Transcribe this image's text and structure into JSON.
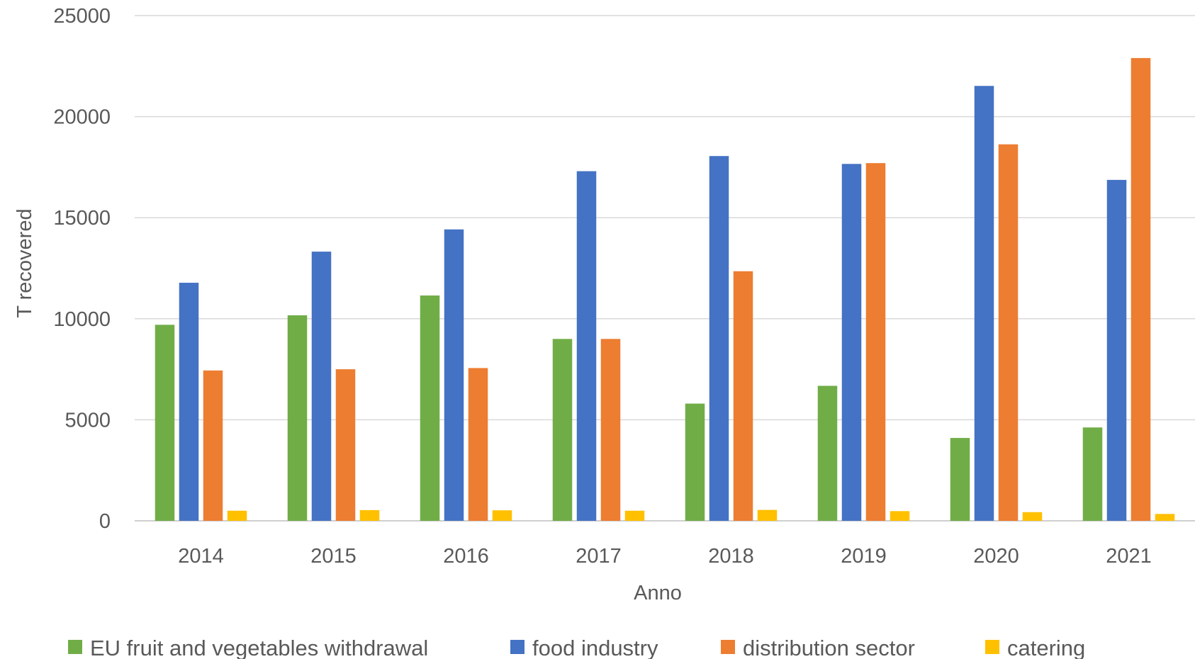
{
  "chart_data": {
    "type": "bar",
    "xlabel": "Anno",
    "ylabel": "T recovered",
    "ylim": [
      0,
      25000
    ],
    "yticks": [
      0,
      5000,
      10000,
      15000,
      20000,
      25000
    ],
    "grid": true,
    "legend_position": "bottom",
    "categories": [
      "2014",
      "2015",
      "2016",
      "2017",
      "2018",
      "2019",
      "2020",
      "2021"
    ],
    "series": [
      {
        "name": "EU fruit and vegetables withdrawal",
        "color": "#70AD47",
        "values": [
          9700,
          10170,
          11150,
          9000,
          5800,
          6680,
          4100,
          4620
        ]
      },
      {
        "name": "food industry",
        "color": "#4472C4",
        "values": [
          11780,
          13320,
          14420,
          17300,
          18050,
          17660,
          21520,
          16870
        ]
      },
      {
        "name": "distribution sector",
        "color": "#ED7D31",
        "values": [
          7440,
          7500,
          7560,
          9000,
          12350,
          17700,
          18630,
          22900
        ]
      },
      {
        "name": "catering",
        "color": "#FFC000",
        "values": [
          500,
          530,
          520,
          500,
          540,
          480,
          430,
          340
        ]
      }
    ]
  }
}
